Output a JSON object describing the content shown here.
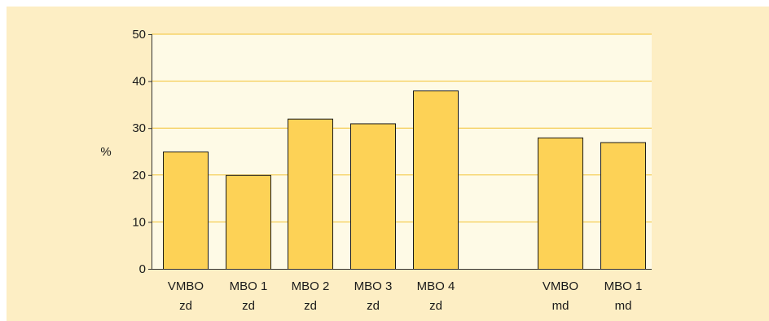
{
  "chart_data": {
    "type": "bar",
    "title": "",
    "xlabel": "",
    "ylabel": "%",
    "ylim": [
      0,
      50
    ],
    "yticks": [
      0,
      10,
      20,
      30,
      40,
      50
    ],
    "grid": true,
    "categories": [
      [
        "VMBO",
        "zd"
      ],
      [
        "MBO 1",
        "zd"
      ],
      [
        "MBO 2",
        "zd"
      ],
      [
        "MBO 3",
        "zd"
      ],
      [
        "MBO 4",
        "zd"
      ],
      [
        "VMBO",
        "md"
      ],
      [
        "MBO 1",
        "md"
      ]
    ],
    "values": [
      25,
      20,
      32,
      31,
      38,
      28,
      27
    ],
    "colors": {
      "bar": "#fdd256",
      "bar_edge": "#1a1a1a",
      "plot_bg": "#fefae6",
      "panel_bg": "#fdeec4",
      "grid": "#f2c232",
      "axis": "#333333"
    }
  }
}
